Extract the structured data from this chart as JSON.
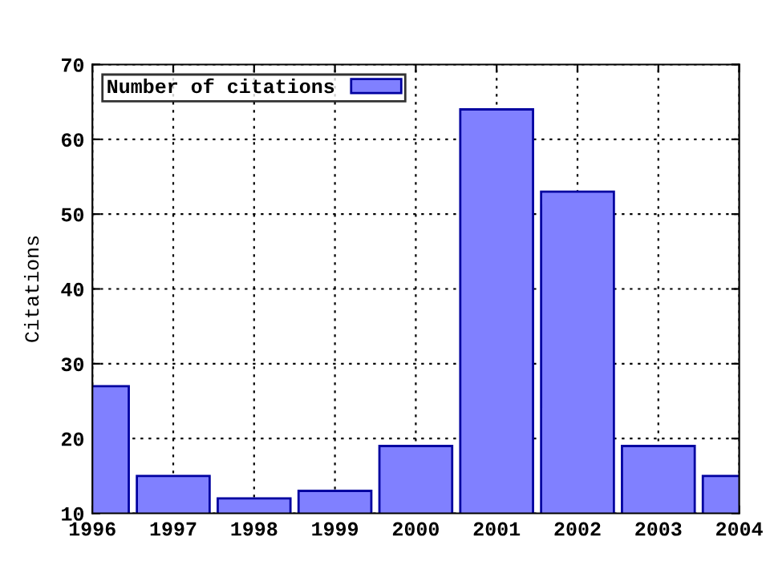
{
  "chart_data": {
    "type": "bar",
    "ylabel": "Citations",
    "x": [
      1996,
      1997,
      1998,
      1999,
      2000,
      2001,
      2002,
      2003,
      2004
    ],
    "series": [
      {
        "name": "Number of citations",
        "color": "#8080ff",
        "values": [
          27,
          15,
          12,
          13,
          19,
          64,
          53,
          19,
          15
        ]
      }
    ],
    "xlim": [
      1996,
      2004
    ],
    "xticks": [
      1996,
      1997,
      1998,
      1999,
      2000,
      2001,
      2002,
      2003,
      2004
    ],
    "ylim": [
      10,
      70
    ],
    "yticks": [
      10,
      20,
      30,
      40,
      50,
      60,
      70
    ],
    "grid": true,
    "legend": "top left"
  }
}
